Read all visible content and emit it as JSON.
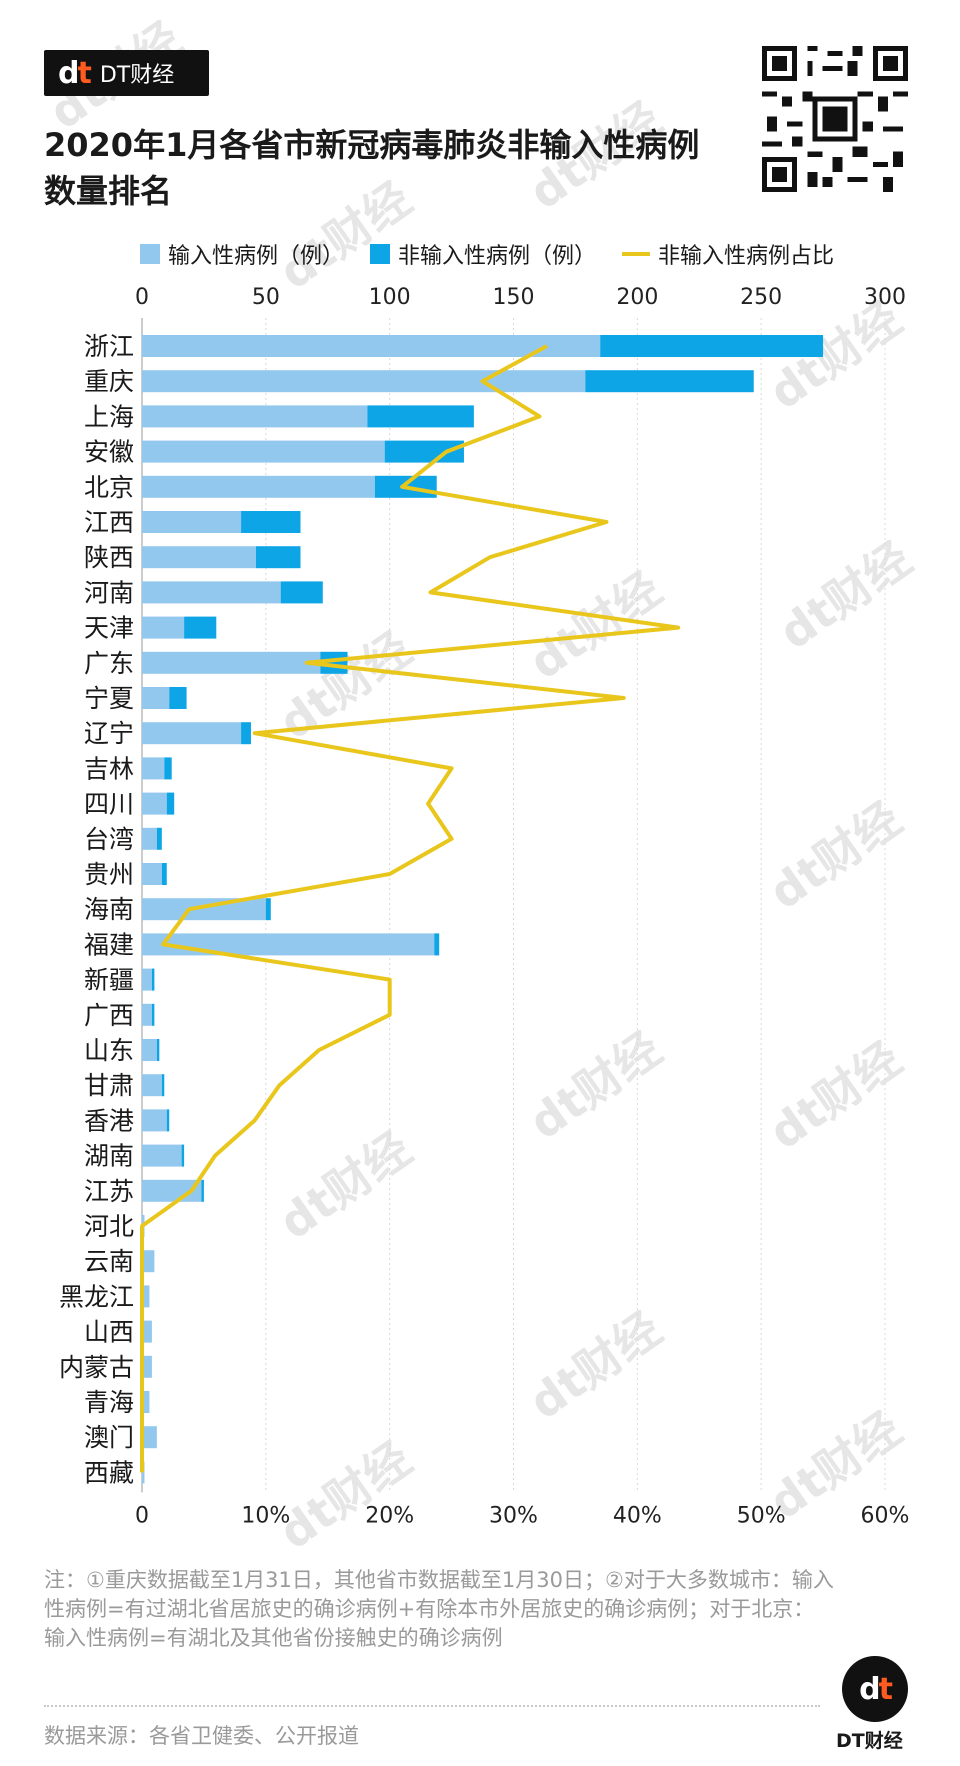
{
  "brand": {
    "name": "DT财经"
  },
  "title": "2020年1月各省市新冠病毒肺炎非输入性病例数量排名",
  "legend": {
    "imported": "输入性病例（例）",
    "local": "非输入性病例（例）",
    "ratio": "非输入性病例占比"
  },
  "colors": {
    "imported": "#93c8ee",
    "local": "#0ea5e6",
    "ratio": "#e9c61c",
    "grid": "#d8d8d8",
    "brand_accent": "#ff5a1f"
  },
  "chart_data": {
    "type": "bar",
    "orientation": "horizontal",
    "stacked": true,
    "categories": [
      "浙江",
      "重庆",
      "上海",
      "安徽",
      "北京",
      "江西",
      "陕西",
      "河南",
      "天津",
      "广东",
      "宁夏",
      "辽宁",
      "吉林",
      "四川",
      "台湾",
      "贵州",
      "海南",
      "福建",
      "新疆",
      "广西",
      "山东",
      "甘肃",
      "香港",
      "湖南",
      "江苏",
      "河北",
      "云南",
      "黑龙江",
      "山西",
      "内蒙古",
      "青海",
      "澳门",
      "西藏"
    ],
    "series": [
      {
        "name": "输入性病例（例）",
        "values": [
          185,
          179,
          91,
          98,
          94,
          40,
          46,
          56,
          17,
          72,
          11,
          40,
          9,
          10,
          6,
          8,
          50,
          118,
          4,
          4,
          6,
          8,
          10,
          16,
          24,
          1,
          5,
          3,
          4,
          4,
          3,
          6,
          1
        ]
      },
      {
        "name": "非输入性病例（例）",
        "values": [
          90,
          68,
          43,
          32,
          25,
          24,
          18,
          17,
          13,
          11,
          7,
          4,
          3,
          3,
          2,
          2,
          2,
          2,
          1,
          1,
          1,
          1,
          1,
          1,
          1,
          0,
          0,
          0,
          0,
          0,
          0,
          0,
          0
        ]
      },
      {
        "name": "非输入性病例占比",
        "axis": "bottom",
        "unit": "%",
        "values": [
          32.7,
          27.5,
          32.1,
          24.6,
          21.0,
          37.5,
          28.1,
          23.3,
          43.3,
          13.3,
          38.9,
          9.1,
          25.0,
          23.1,
          25.0,
          20.0,
          3.8,
          1.7,
          20.0,
          20.0,
          14.3,
          11.1,
          9.1,
          5.9,
          4.0,
          0,
          0,
          0,
          0,
          0,
          0,
          0,
          0
        ]
      }
    ],
    "top_axis": {
      "min": 0,
      "max": 300,
      "ticks": [
        "0",
        "50",
        "100",
        "150",
        "200",
        "250",
        "300"
      ]
    },
    "bottom_axis": {
      "min": 0,
      "max": 60,
      "ticks": [
        "0",
        "10%",
        "20%",
        "30%",
        "40%",
        "50%",
        "60%"
      ]
    },
    "grid": true,
    "legend_position": "top"
  },
  "note": "注：①重庆数据截至1月31日，其他省市数据截至1月30日；②对于大多数城市：输入性病例=有过湖北省居旅史的确诊病例+有除本市外居旅史的确诊病例；对于北京：输入性病例=有湖北及其他省份接触史的确诊病例",
  "source": "数据来源：各省卫健委、公开报道",
  "watermark": "dt财经"
}
